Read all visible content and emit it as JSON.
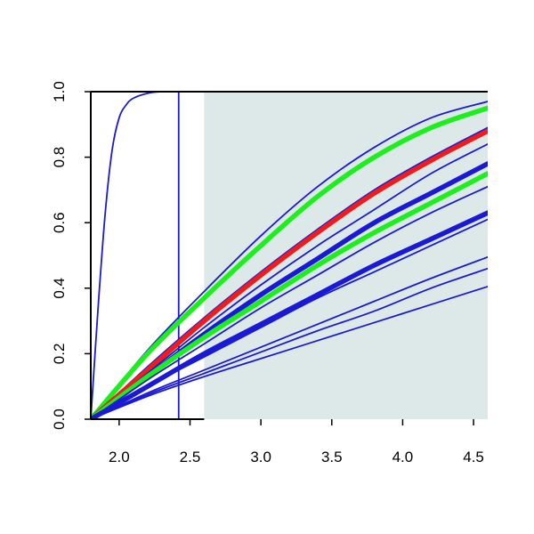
{
  "chart_data": {
    "type": "line",
    "title": "",
    "xlabel": "",
    "ylabel": "",
    "xlim": [
      1.8,
      4.6
    ],
    "ylim": [
      0.0,
      1.0
    ],
    "x_ticks": [
      2.0,
      2.5,
      3.0,
      3.5,
      4.0,
      4.5
    ],
    "y_ticks": [
      0.0,
      0.2,
      0.4,
      0.6,
      0.8,
      1.0
    ],
    "x_tick_labels": [
      "2.0",
      "2.5",
      "3.0",
      "3.5",
      "4.0",
      "4.5"
    ],
    "y_tick_labels": [
      "0.0",
      "0.2",
      "0.4",
      "0.6",
      "0.8",
      "1.0"
    ],
    "grid": false,
    "legend": "none",
    "shaded_region": {
      "x_start": 2.6,
      "x_end": 4.6,
      "color": "#dde9e9"
    },
    "colors": {
      "blue": "#1a1ad6",
      "green": "#1cf01c",
      "red": "#f01c1c"
    },
    "series": [
      {
        "color": "blue",
        "width": "thin",
        "x": [
          1.8,
          1.85,
          1.9,
          1.95,
          2.0,
          2.05,
          2.1,
          2.2,
          2.3,
          2.5,
          4.6
        ],
        "y": [
          0.0,
          0.33,
          0.62,
          0.82,
          0.92,
          0.96,
          0.98,
          0.995,
          1.0,
          1.0,
          1.0
        ]
      },
      {
        "color": "blue",
        "width": "thin",
        "x": [
          2.42,
          2.42
        ],
        "y": [
          0.0,
          1.0
        ]
      },
      {
        "color": "blue",
        "width": "thin",
        "x": [
          1.8,
          2.42
        ],
        "y": [
          0.0,
          0.0
        ]
      },
      {
        "color": "blue",
        "width": "thin",
        "x": [
          2.42,
          4.6
        ],
        "y": [
          1.0,
          1.0
        ]
      },
      {
        "color": "blue",
        "width": "thin",
        "x": [
          1.8,
          2.2,
          2.6,
          3.0,
          3.4,
          3.8,
          4.2,
          4.6
        ],
        "y": [
          0.0,
          0.21,
          0.39,
          0.56,
          0.71,
          0.83,
          0.92,
          0.97
        ]
      },
      {
        "color": "green",
        "width": "thick",
        "x": [
          1.8,
          2.2,
          2.6,
          3.0,
          3.4,
          3.8,
          4.2,
          4.6
        ],
        "y": [
          0.0,
          0.2,
          0.37,
          0.53,
          0.68,
          0.8,
          0.89,
          0.95
        ]
      },
      {
        "color": "blue",
        "width": "thin",
        "x": [
          1.8,
          2.2,
          2.6,
          3.0,
          3.4,
          3.8,
          4.2,
          4.6
        ],
        "y": [
          0.0,
          0.16,
          0.31,
          0.45,
          0.58,
          0.7,
          0.8,
          0.89
        ]
      },
      {
        "color": "red",
        "width": "thick",
        "x": [
          1.8,
          2.2,
          2.6,
          3.0,
          3.4,
          3.8,
          4.2,
          4.6
        ],
        "y": [
          0.0,
          0.15,
          0.3,
          0.44,
          0.57,
          0.69,
          0.79,
          0.88
        ]
      },
      {
        "color": "blue",
        "width": "thin",
        "x": [
          1.8,
          2.2,
          2.6,
          3.0,
          3.4,
          3.8,
          4.2,
          4.6
        ],
        "y": [
          0.0,
          0.14,
          0.28,
          0.41,
          0.53,
          0.64,
          0.75,
          0.84
        ]
      },
      {
        "color": "blue",
        "width": "thick",
        "x": [
          1.8,
          2.2,
          2.6,
          3.0,
          3.4,
          3.8,
          4.2,
          4.6
        ],
        "y": [
          0.0,
          0.13,
          0.26,
          0.38,
          0.49,
          0.6,
          0.69,
          0.78
        ]
      },
      {
        "color": "green",
        "width": "thick",
        "x": [
          1.8,
          2.2,
          2.6,
          3.0,
          3.4,
          3.8,
          4.2,
          4.6
        ],
        "y": [
          0.0,
          0.13,
          0.25,
          0.36,
          0.47,
          0.57,
          0.66,
          0.75
        ]
      },
      {
        "color": "blue",
        "width": "thin",
        "x": [
          1.8,
          2.2,
          2.6,
          3.0,
          3.4,
          3.8,
          4.2,
          4.6
        ],
        "y": [
          0.0,
          0.12,
          0.23,
          0.34,
          0.44,
          0.54,
          0.63,
          0.71
        ]
      },
      {
        "color": "blue",
        "width": "thick",
        "x": [
          1.8,
          2.2,
          2.6,
          3.0,
          3.4,
          3.8,
          4.2,
          4.6
        ],
        "y": [
          0.0,
          0.1,
          0.2,
          0.29,
          0.38,
          0.47,
          0.55,
          0.63
        ]
      },
      {
        "color": "blue",
        "width": "thin",
        "x": [
          1.8,
          2.2,
          2.6,
          3.0,
          3.4,
          3.8,
          4.2,
          4.6
        ],
        "y": [
          0.0,
          0.1,
          0.19,
          0.28,
          0.37,
          0.45,
          0.53,
          0.61
        ]
      },
      {
        "color": "blue",
        "width": "thin",
        "x": [
          1.8,
          2.2,
          2.6,
          3.0,
          3.4,
          3.8,
          4.2,
          4.6
        ],
        "y": [
          0.0,
          0.08,
          0.15,
          0.22,
          0.29,
          0.36,
          0.43,
          0.495
        ]
      },
      {
        "color": "blue",
        "width": "thin",
        "x": [
          1.8,
          2.2,
          2.6,
          3.0,
          3.4,
          3.8,
          4.2,
          4.6
        ],
        "y": [
          0.0,
          0.075,
          0.14,
          0.205,
          0.27,
          0.33,
          0.4,
          0.46
        ]
      },
      {
        "color": "blue",
        "width": "thin",
        "x": [
          1.8,
          2.2,
          2.6,
          3.0,
          3.4,
          3.8,
          4.2,
          4.6
        ],
        "y": [
          0.0,
          0.07,
          0.13,
          0.185,
          0.24,
          0.295,
          0.35,
          0.405
        ]
      }
    ]
  }
}
